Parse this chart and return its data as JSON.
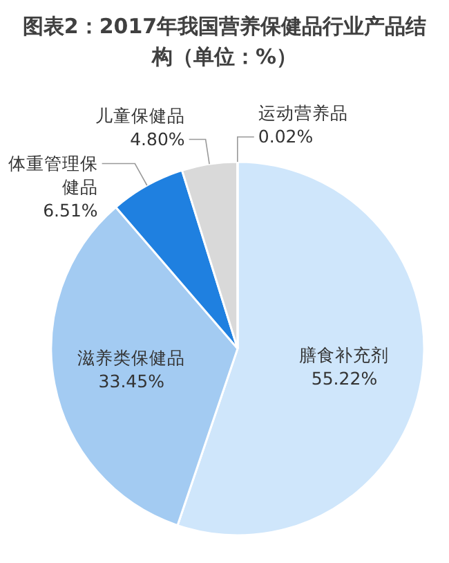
{
  "chart_data": {
    "type": "pie",
    "title": "图表2：2017年我国营养保健品行业产品结构（单位：%）",
    "categories": [
      "膳食补充剂",
      "滋养类保健品",
      "体重管理保健品",
      "儿童保健品",
      "运动营养品"
    ],
    "values": [
      55.22,
      33.45,
      6.51,
      4.8,
      0.02
    ],
    "value_labels": [
      "55.22%",
      "33.45%",
      "6.51%",
      "4.80%",
      "0.02%"
    ],
    "colors": [
      "#cfe6fb",
      "#a3cbf2",
      "#1f80e0",
      "#d9d9d9",
      "#bfbfbf"
    ]
  }
}
